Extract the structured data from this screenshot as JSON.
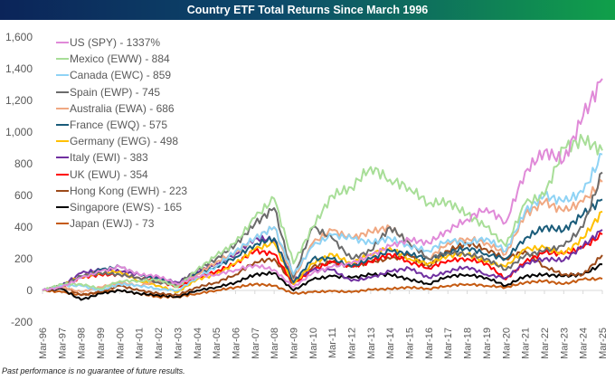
{
  "chart_data": {
    "type": "line",
    "title": "Country ETF Total Returns Since March 1996",
    "footnote": "Past performance is no guarantee of future results.",
    "xlabel": "",
    "ylabel": "",
    "ylim": [
      -200,
      1600
    ],
    "yticks": [
      "-200",
      "0",
      "200",
      "400",
      "600",
      "800",
      "1,000",
      "1,200",
      "1,400",
      "1,600"
    ],
    "ytick_values": [
      -200,
      0,
      200,
      400,
      600,
      800,
      1000,
      1200,
      1400,
      1600
    ],
    "categories": [
      "Mar-96",
      "Mar-97",
      "Mar-98",
      "Mar-99",
      "Mar-00",
      "Mar-01",
      "Mar-02",
      "Mar-03",
      "Mar-04",
      "Mar-05",
      "Mar-06",
      "Mar-07",
      "Mar-08",
      "Mar-09",
      "Mar-10",
      "Mar-11",
      "Mar-12",
      "Mar-13",
      "Mar-14",
      "Mar-15",
      "Mar-16",
      "Mar-17",
      "Mar-18",
      "Mar-19",
      "Mar-20",
      "Mar-21",
      "Mar-22",
      "Mar-23",
      "Mar-24",
      "Mar-25"
    ],
    "grid": false,
    "legend": "top-left",
    "series": [
      {
        "name": "US (SPY) - 1337%",
        "color": "#e08ad8",
        "values": [
          0,
          20,
          80,
          120,
          150,
          100,
          90,
          40,
          90,
          100,
          130,
          160,
          130,
          20,
          110,
          150,
          170,
          220,
          280,
          320,
          300,
          380,
          450,
          520,
          430,
          750,
          880,
          820,
          1100,
          1337
        ]
      },
      {
        "name": "Mexico (EWW) - 884",
        "color": "#a8de98",
        "values": [
          0,
          40,
          40,
          10,
          60,
          60,
          70,
          20,
          130,
          220,
          300,
          460,
          580,
          170,
          400,
          600,
          650,
          780,
          700,
          650,
          550,
          560,
          480,
          400,
          280,
          550,
          600,
          900,
          950,
          884
        ]
      },
      {
        "name": "Canada (EWC) - 859",
        "color": "#8fd3f5",
        "values": [
          0,
          30,
          30,
          0,
          40,
          30,
          10,
          0,
          80,
          150,
          250,
          330,
          400,
          100,
          280,
          350,
          330,
          300,
          330,
          280,
          250,
          320,
          300,
          330,
          250,
          500,
          600,
          560,
          620,
          859
        ]
      },
      {
        "name": "Spain (EWP) - 745",
        "color": "#6b6b6b",
        "values": [
          0,
          30,
          90,
          110,
          100,
          80,
          50,
          40,
          130,
          200,
          290,
          420,
          520,
          80,
          400,
          330,
          200,
          250,
          400,
          300,
          200,
          240,
          230,
          200,
          130,
          220,
          250,
          280,
          400,
          745
        ]
      },
      {
        "name": "Australia (EWA) - 686",
        "color": "#f0a882",
        "values": [
          0,
          20,
          -10,
          20,
          50,
          30,
          60,
          30,
          100,
          180,
          240,
          330,
          400,
          70,
          300,
          380,
          330,
          370,
          400,
          300,
          200,
          300,
          330,
          300,
          230,
          480,
          560,
          500,
          560,
          686
        ]
      },
      {
        "name": "France (EWQ) - 575",
        "color": "#1a5c7a",
        "values": [
          0,
          30,
          80,
          130,
          150,
          100,
          70,
          40,
          110,
          150,
          210,
          290,
          330,
          50,
          200,
          200,
          150,
          200,
          250,
          230,
          200,
          240,
          270,
          230,
          200,
          330,
          400,
          380,
          480,
          575
        ]
      },
      {
        "name": "Germany (EWG) - 498",
        "color": "#ffc000",
        "values": [
          0,
          30,
          90,
          110,
          120,
          60,
          30,
          -10,
          70,
          100,
          170,
          260,
          300,
          40,
          170,
          230,
          170,
          230,
          270,
          200,
          170,
          220,
          230,
          180,
          150,
          260,
          270,
          230,
          330,
          498
        ]
      },
      {
        "name": "Italy (EWI) - 383",
        "color": "#7030a0",
        "values": [
          0,
          30,
          110,
          130,
          120,
          100,
          80,
          50,
          120,
          170,
          230,
          330,
          320,
          70,
          130,
          130,
          60,
          80,
          120,
          140,
          80,
          120,
          150,
          100,
          80,
          170,
          200,
          190,
          280,
          383
        ]
      },
      {
        "name": "UK (EWU) - 354",
        "color": "#ff0000",
        "values": [
          0,
          30,
          80,
          100,
          100,
          80,
          60,
          20,
          80,
          120,
          170,
          250,
          230,
          40,
          130,
          180,
          150,
          180,
          230,
          180,
          140,
          190,
          200,
          170,
          70,
          180,
          240,
          230,
          270,
          354
        ]
      },
      {
        "name": "Hong Kong (EWH) - 223",
        "color": "#9c4a1a",
        "values": [
          0,
          30,
          -30,
          -10,
          30,
          0,
          -20,
          -30,
          20,
          50,
          100,
          180,
          200,
          40,
          150,
          180,
          150,
          180,
          200,
          220,
          150,
          250,
          300,
          260,
          200,
          250,
          150,
          100,
          100,
          223
        ]
      },
      {
        "name": "Singapore (EWS) - 165",
        "color": "#000000",
        "values": [
          0,
          10,
          -60,
          -20,
          0,
          -20,
          -30,
          -40,
          0,
          20,
          50,
          100,
          110,
          0,
          70,
          90,
          80,
          100,
          100,
          70,
          40,
          90,
          100,
          80,
          30,
          90,
          100,
          90,
          100,
          165
        ]
      },
      {
        "name": "Japan (EWJ) - 73",
        "color": "#c55a11",
        "values": [
          0,
          -10,
          -30,
          -10,
          0,
          -20,
          -40,
          -40,
          -20,
          0,
          20,
          40,
          30,
          -20,
          -10,
          -5,
          -10,
          5,
          10,
          20,
          10,
          30,
          40,
          30,
          20,
          50,
          60,
          40,
          70,
          73
        ]
      }
    ]
  }
}
